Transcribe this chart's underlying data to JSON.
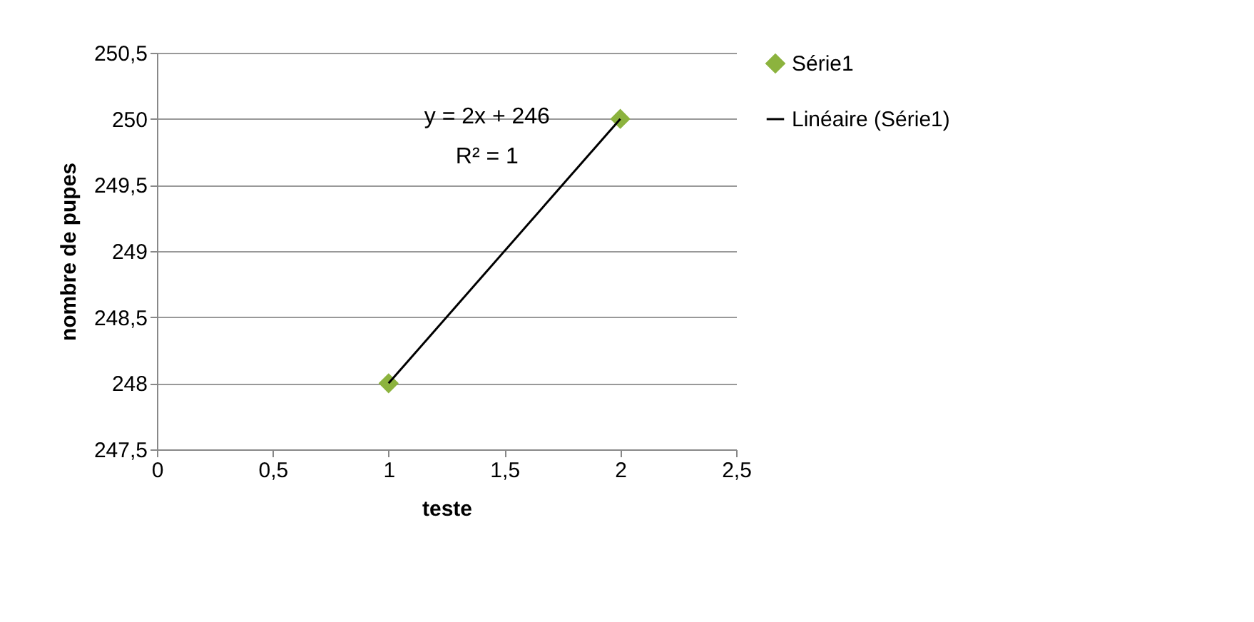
{
  "chart_data": {
    "type": "scatter",
    "xlabel": "teste",
    "ylabel": "nombre de pupes",
    "x": [
      1,
      2
    ],
    "series": [
      {
        "name": "Série1",
        "color": "#8cb33e",
        "values": [
          248,
          250
        ],
        "marker": "diamond"
      },
      {
        "name": "Linéaire (Série1)",
        "type": "line",
        "color": "#000000",
        "x": [
          1,
          2
        ],
        "values": [
          248,
          250
        ],
        "line_style": "solid"
      }
    ],
    "annotations": [
      "y = 2x + 246",
      "R² = 1"
    ],
    "xlim": [
      0,
      2.5
    ],
    "xticks": [
      0,
      {
        "value": 0.5,
        "label": "0,5"
      },
      1,
      {
        "value": 1.5,
        "label": "1,5"
      },
      2,
      {
        "value": 2.5,
        "label": "2,5"
      }
    ],
    "ylim": [
      247.5,
      250.5
    ],
    "yticks": [
      {
        "value": 247.5,
        "label": "247,5"
      },
      248,
      {
        "value": 248.5,
        "label": "248,5"
      },
      249,
      {
        "value": 249.5,
        "label": "249,5"
      },
      250,
      {
        "value": 250.5,
        "label": "250,5"
      }
    ],
    "grid": "y",
    "legend": "right"
  }
}
